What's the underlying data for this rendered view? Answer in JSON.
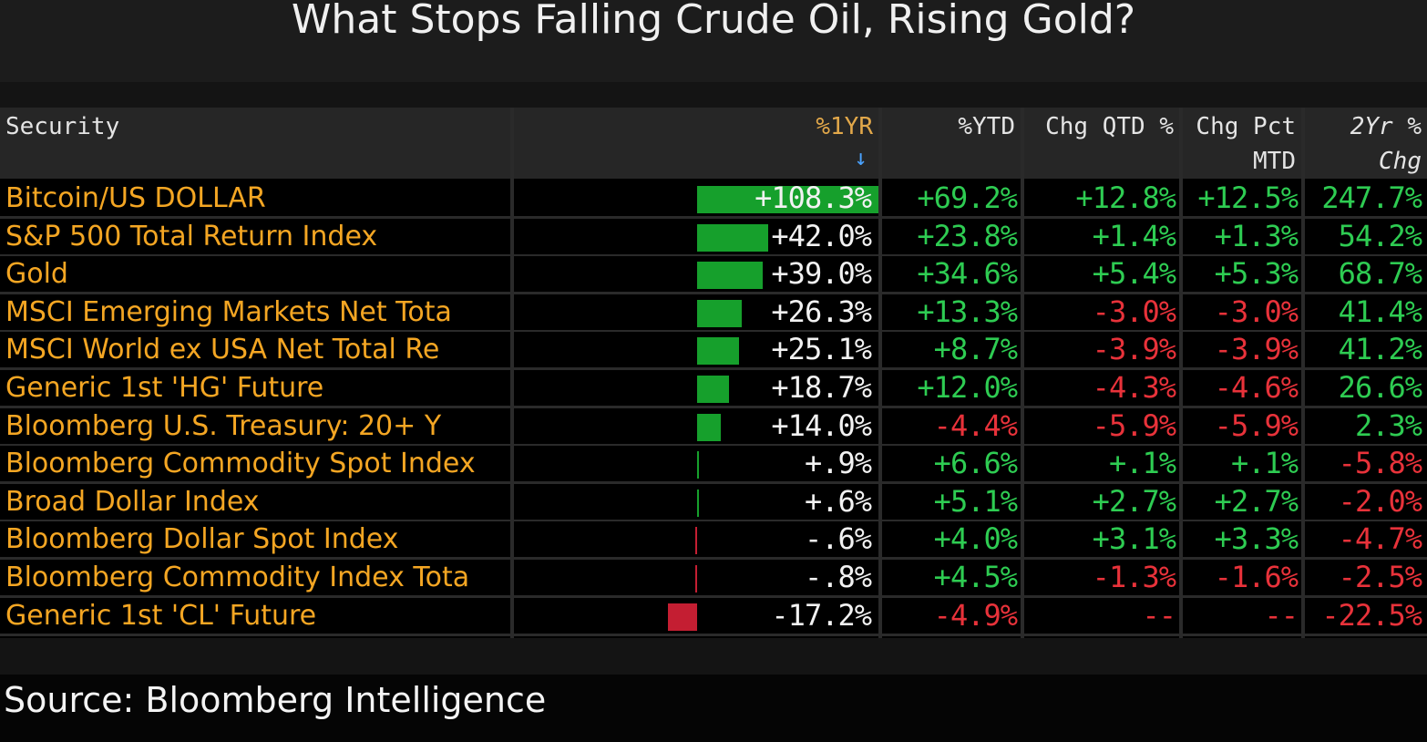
{
  "title": "What Stops Falling Crude Oil, Rising Gold?",
  "source": "Source: Bloomberg Intelligence",
  "colors": {
    "positive": "#2ecc52",
    "negative": "#e8323a",
    "name": "#f4a623",
    "bar_pos": "#16a02c",
    "bar_neg": "#c41e32"
  },
  "headers": {
    "security": "Security",
    "pct_1yr": "%1YR",
    "sort_arrow": "↓",
    "pct_ytd": "%YTD",
    "chg_qtd": "Chg QTD %",
    "chg_mtd_line1": "Chg Pct",
    "chg_mtd_line2": "MTD",
    "chg_2yr": "2Yr % Chg"
  },
  "rows": [
    {
      "name": "Bitcoin/US DOLLAR",
      "yr1": "+108.3%",
      "yr1_value": 108.3,
      "ytd": "+69.2%",
      "qtd": "+12.8%",
      "mtd": "+12.5%",
      "yr2": "247.7%"
    },
    {
      "name": "S&P 500 Total Return Index",
      "yr1": "+42.0%",
      "yr1_value": 42.0,
      "ytd": "+23.8%",
      "qtd": "+1.4%",
      "mtd": "+1.3%",
      "yr2": "54.2%"
    },
    {
      "name": "Gold",
      "yr1": "+39.0%",
      "yr1_value": 39.0,
      "ytd": "+34.6%",
      "qtd": "+5.4%",
      "mtd": "+5.3%",
      "yr2": "68.7%"
    },
    {
      "name": "MSCI Emerging Markets Net Tota",
      "yr1": "+26.3%",
      "yr1_value": 26.3,
      "ytd": "+13.3%",
      "qtd": "-3.0%",
      "mtd": "-3.0%",
      "yr2": "41.4%"
    },
    {
      "name": "MSCI World ex USA Net Total Re",
      "yr1": "+25.1%",
      "yr1_value": 25.1,
      "ytd": "+8.7%",
      "qtd": "-3.9%",
      "mtd": "-3.9%",
      "yr2": "41.2%"
    },
    {
      "name": "Generic 1st 'HG' Future",
      "yr1": "+18.7%",
      "yr1_value": 18.7,
      "ytd": "+12.0%",
      "qtd": "-4.3%",
      "mtd": "-4.6%",
      "yr2": "26.6%"
    },
    {
      "name": "Bloomberg U.S. Treasury: 20+ Y",
      "yr1": "+14.0%",
      "yr1_value": 14.0,
      "ytd": "-4.4%",
      "qtd": "-5.9%",
      "mtd": "-5.9%",
      "yr2": "2.3%"
    },
    {
      "name": "Bloomberg Commodity Spot Index",
      "yr1": "+.9%",
      "yr1_value": 0.9,
      "ytd": "+6.6%",
      "qtd": "+.1%",
      "mtd": "+.1%",
      "yr2": "-5.8%"
    },
    {
      "name": "Broad Dollar Index",
      "yr1": "+.6%",
      "yr1_value": 0.6,
      "ytd": "+5.1%",
      "qtd": "+2.7%",
      "mtd": "+2.7%",
      "yr2": "-2.0%"
    },
    {
      "name": "Bloomberg Dollar Spot Index",
      "yr1": "-.6%",
      "yr1_value": -0.6,
      "ytd": "+4.0%",
      "qtd": "+3.1%",
      "mtd": "+3.3%",
      "yr2": "-4.7%"
    },
    {
      "name": "Bloomberg Commodity Index Tota",
      "yr1": "-.8%",
      "yr1_value": -0.8,
      "ytd": "+4.5%",
      "qtd": "-1.3%",
      "mtd": "-1.6%",
      "yr2": "-2.5%"
    },
    {
      "name": "Generic 1st 'CL' Future",
      "yr1": "-17.2%",
      "yr1_value": -17.2,
      "ytd": "-4.9%",
      "qtd": "--",
      "mtd": "--",
      "yr2": "-22.5%"
    }
  ]
}
